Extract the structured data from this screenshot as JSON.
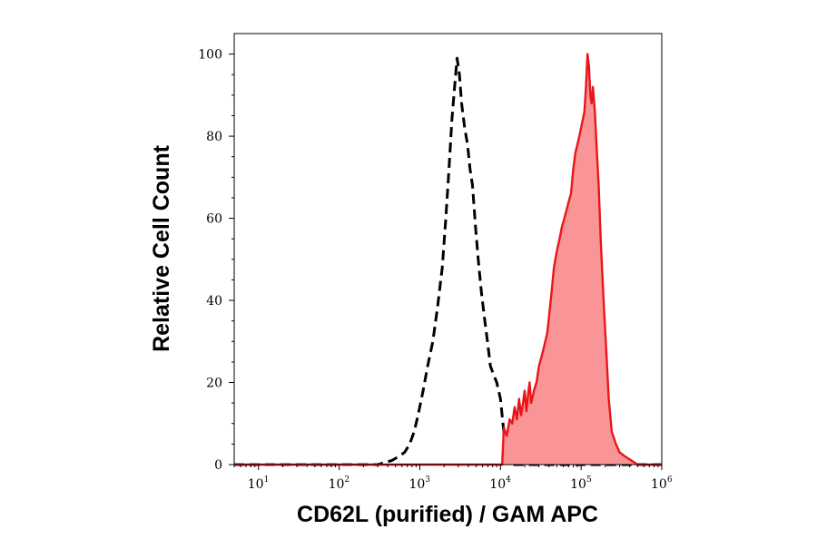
{
  "chart_data": {
    "type": "area",
    "title": "",
    "xlabel": "CD62L (purified) / GAM APC",
    "ylabel": "Relative Cell Count",
    "x_scale": "log",
    "xlim": [
      5,
      1000000
    ],
    "ylim": [
      0,
      105
    ],
    "x_ticks": [
      {
        "value": 10,
        "base": "10",
        "exp": "1"
      },
      {
        "value": 100,
        "base": "10",
        "exp": "2"
      },
      {
        "value": 1000,
        "base": "10",
        "exp": "3"
      },
      {
        "value": 10000,
        "base": "10",
        "exp": "4"
      },
      {
        "value": 100000,
        "base": "10",
        "exp": "5"
      },
      {
        "value": 1000000,
        "base": "10",
        "exp": "6"
      }
    ],
    "y_ticks": [
      0,
      20,
      40,
      60,
      80,
      100
    ],
    "grid": false,
    "series": [
      {
        "style": "dashed-line",
        "color": "#000000",
        "x": [
          5,
          300,
          450,
          550,
          650,
          750,
          850,
          950,
          1100,
          1250,
          1450,
          1650,
          1900,
          2100,
          2300,
          2500,
          2700,
          2900,
          3100,
          3300,
          3600,
          3900,
          4200,
          4500,
          4900,
          5300,
          5800,
          6300,
          6900,
          7500,
          8200,
          9000,
          10000,
          11000,
          13000,
          1000000
        ],
        "y": [
          0,
          0,
          1,
          2,
          3,
          5,
          8,
          12,
          18,
          24,
          30,
          38,
          48,
          60,
          72,
          84,
          92,
          99,
          95,
          88,
          82,
          78,
          72,
          68,
          58,
          50,
          42,
          36,
          30,
          24,
          22,
          20,
          16,
          8,
          0,
          0
        ]
      },
      {
        "style": "filled",
        "color": "#e8161a",
        "fill": "#f99597",
        "x": [
          5,
          9000,
          10500,
          11000,
          12000,
          13000,
          14000,
          15000,
          16000,
          17000,
          18000,
          19000,
          20000,
          21000,
          22000,
          23000,
          24000,
          26000,
          28000,
          30000,
          32000,
          34000,
          36000,
          38000,
          40000,
          43000,
          46000,
          50000,
          54000,
          58000,
          62000,
          66000,
          70000,
          75000,
          80000,
          85000,
          90000,
          95000,
          100000,
          110000,
          115000,
          120000,
          125000,
          130000,
          135000,
          140000,
          148000,
          155000,
          165000,
          175000,
          190000,
          205000,
          220000,
          240000,
          270000,
          300000,
          350000,
          420000,
          500000,
          1000000
        ],
        "y": [
          0,
          0,
          0,
          9,
          7,
          11,
          10,
          14,
          11,
          16,
          12,
          15,
          18,
          13,
          17,
          20,
          15,
          18,
          20,
          24,
          26,
          28,
          30,
          32,
          36,
          42,
          48,
          52,
          55,
          58,
          60,
          62,
          64,
          66,
          72,
          76,
          78,
          80,
          82,
          86,
          92,
          100,
          97,
          90,
          88,
          92,
          86,
          78,
          68,
          55,
          40,
          28,
          16,
          8,
          5,
          3,
          2,
          1,
          0,
          0
        ]
      }
    ]
  }
}
